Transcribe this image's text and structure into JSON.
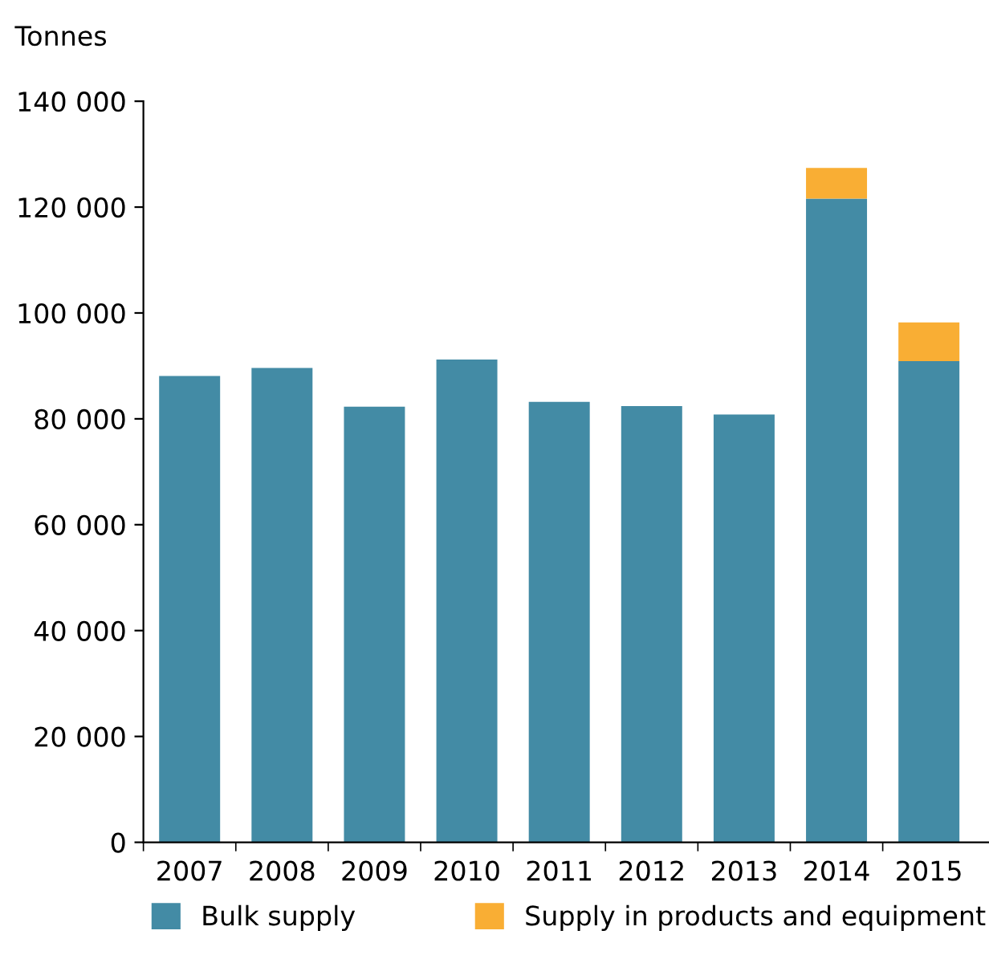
{
  "chart_data": {
    "type": "bar",
    "ylabel": "Tonnes",
    "stacked": true,
    "categories": [
      "2007",
      "2008",
      "2009",
      "2010",
      "2011",
      "2012",
      "2013",
      "2014",
      "2015"
    ],
    "series": [
      {
        "name": "Bulk supply",
        "color": "#438ba5",
        "values": [
          88100,
          89600,
          82300,
          91200,
          83200,
          82400,
          80800,
          121600,
          90900
        ]
      },
      {
        "name": "Supply in products and equipment",
        "color": "#f9ae34",
        "values": [
          null,
          null,
          null,
          null,
          null,
          null,
          null,
          5800,
          7300
        ]
      }
    ],
    "ylim": [
      0,
      140000
    ],
    "yticks": [
      {
        "value": 0,
        "label": "0"
      },
      {
        "value": 20000,
        "label": "20 000"
      },
      {
        "value": 40000,
        "label": "40 000"
      },
      {
        "value": 60000,
        "label": "60 000"
      },
      {
        "value": 80000,
        "label": "80 000"
      },
      {
        "value": 100000,
        "label": "100 000"
      },
      {
        "value": 120000,
        "label": "120 000"
      },
      {
        "value": 140000,
        "label": "140 000"
      }
    ],
    "grid": false,
    "legend": "bottom"
  }
}
